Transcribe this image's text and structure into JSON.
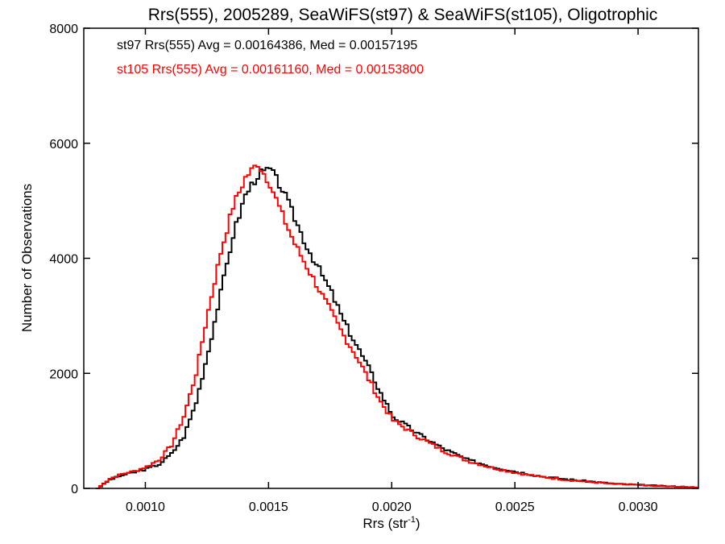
{
  "chart_data": {
    "type": "line",
    "style": "step-histogram",
    "title": "Rrs(555), 2005289, SeaWiFS(st97) & SeaWiFS(st105), Oligotrophic",
    "xlabel": "Rrs (str",
    "xlabel_sup": "-1",
    "xlabel_end": ")",
    "ylabel": "Number of Observations",
    "xlim": [
      0.00075,
      0.003245
    ],
    "ylim": [
      0,
      8000
    ],
    "x_ticks": [
      0.001,
      0.0015,
      0.002,
      0.0025,
      0.003
    ],
    "x_tick_labels": [
      "0.0010",
      "0.0015",
      "0.0020",
      "0.0025",
      "0.0030"
    ],
    "y_ticks": [
      0,
      2000,
      4000,
      6000,
      8000
    ],
    "y_tick_labels": [
      "0",
      "2000",
      "4000",
      "6000",
      "8000"
    ],
    "bin_start": 0.0008,
    "bin_width": 1.25e-05,
    "grid": false,
    "legend_position": "top-left",
    "series": [
      {
        "name": "st97",
        "color": "#000000",
        "legend_text": "st97 Rrs(555) Avg = 0.00164386, Med = 0.00157195",
        "knots_x": [
          0.0008,
          0.00085,
          0.0009,
          0.00095,
          0.001,
          0.00105,
          0.0011,
          0.00115,
          0.0012,
          0.00125,
          0.0013,
          0.00135,
          0.0014,
          0.00145,
          0.0015,
          0.00155,
          0.0016,
          0.00165,
          0.0017,
          0.00175,
          0.0018,
          0.00185,
          0.0019,
          0.00195,
          0.002,
          0.0021,
          0.0022,
          0.0023,
          0.0024,
          0.0025,
          0.0026,
          0.0027,
          0.0028,
          0.0029,
          0.003,
          0.0031,
          0.0032,
          0.00324
        ],
        "knots_y": [
          0,
          150,
          230,
          280,
          340,
          420,
          600,
          900,
          1500,
          2400,
          3400,
          4400,
          5100,
          5450,
          5550,
          5200,
          4700,
          4200,
          3800,
          3400,
          2900,
          2500,
          2100,
          1650,
          1250,
          950,
          700,
          500,
          380,
          290,
          210,
          160,
          120,
          80,
          60,
          40,
          25,
          10
        ]
      },
      {
        "name": "st105",
        "color": "#ff0000",
        "legend_text": "st105 Rrs(555) Avg = 0.00161160, Med = 0.00153800",
        "knots_x": [
          0.0008,
          0.00085,
          0.0009,
          0.00095,
          0.001,
          0.00105,
          0.0011,
          0.00115,
          0.0012,
          0.00125,
          0.0013,
          0.00135,
          0.0014,
          0.00145,
          0.0015,
          0.00155,
          0.0016,
          0.00165,
          0.0017,
          0.00175,
          0.0018,
          0.00185,
          0.0019,
          0.00195,
          0.002,
          0.0021,
          0.0022,
          0.0023,
          0.0024,
          0.0025,
          0.0026,
          0.0027,
          0.0028,
          0.0029,
          0.003,
          0.0031,
          0.0032,
          0.00324
        ],
        "knots_y": [
          0,
          170,
          250,
          300,
          380,
          500,
          750,
          1250,
          2000,
          3100,
          4100,
          4900,
          5400,
          5650,
          5300,
          4750,
          4250,
          3850,
          3450,
          3050,
          2650,
          2300,
          1900,
          1500,
          1180,
          900,
          660,
          480,
          360,
          270,
          200,
          150,
          110,
          75,
          55,
          35,
          22,
          8
        ]
      }
    ]
  }
}
